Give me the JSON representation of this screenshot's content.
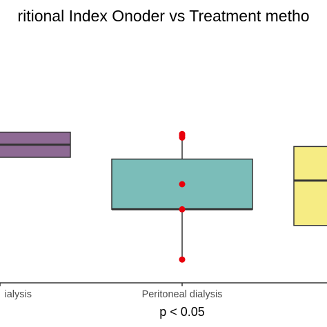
{
  "chart_data": {
    "type": "box",
    "title": "ritional Index Onoder vs Treatment metho",
    "x_tick_labels": [
      "ialysis",
      "Peritoneal dialysis",
      ""
    ],
    "annotation": "p < 0.05",
    "ylim": [
      0,
      100
    ],
    "grid": false,
    "legend": "none",
    "boxes": [
      {
        "category": "ialysis",
        "q1": 70,
        "median": 77,
        "q3": 84,
        "whisker_low": 70,
        "whisker_high": 84,
        "color": "#8e6a94",
        "outliers": []
      },
      {
        "category": "Peritoneal dialysis",
        "q1": 41,
        "median": 41,
        "q3": 69,
        "whisker_low": 13,
        "whisker_high": 82,
        "color": "#7bbdb9",
        "outliers": [
          13,
          41,
          55,
          81,
          82,
          83
        ]
      },
      {
        "category": "",
        "q1": 32,
        "median": 57,
        "q3": 76,
        "whisker_low": 32,
        "whisker_high": 76,
        "color": "#f6ec84",
        "outliers": []
      }
    ],
    "point_color": "#e8000b"
  }
}
